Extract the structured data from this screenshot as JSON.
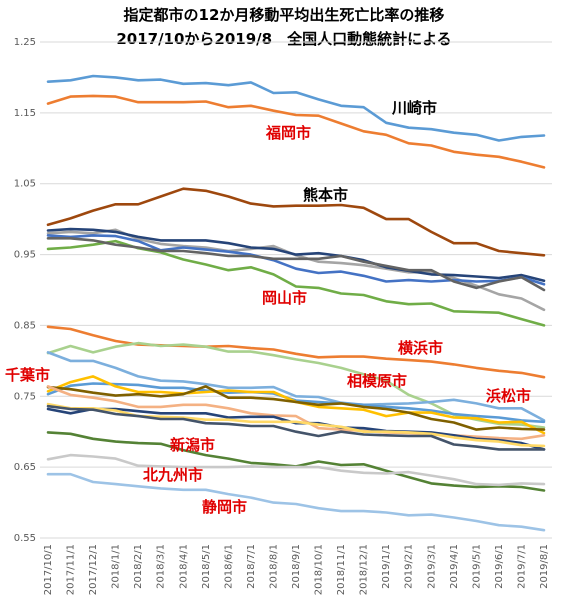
{
  "chart_data": {
    "type": "line",
    "title": "指定都市の12か月移動平均出生死亡比率の推移",
    "subtitle": "2017/10から2019/8　全国人口動態統計による",
    "xlabel": "",
    "ylabel": "",
    "ylim": [
      0.55,
      1.25
    ],
    "y_ticks": [
      "0.55",
      "0.65",
      "0.75",
      "0.85",
      "0.95",
      "1.05",
      "1.15",
      "1.25"
    ],
    "grid": true,
    "legend": "none",
    "categories": [
      "2017/10/1",
      "2017/11/1",
      "2017/12/1",
      "2018/1/1",
      "2018/2/1",
      "2018/3/1",
      "2018/4/1",
      "2018/5/1",
      "2018/6/1",
      "2018/7/1",
      "2018/8/1",
      "2018/9/1",
      "2018/10/1",
      "2018/11/1",
      "2018/12/1",
      "2019/1/1",
      "2019/2/1",
      "2019/3/1",
      "2019/4/1",
      "2019/5/1",
      "2019/6/1",
      "2019/7/1",
      "2019/8/1"
    ],
    "series": [
      {
        "name": "川崎市",
        "color": "#5b9bd5",
        "values": [
          1.194,
          1.196,
          1.202,
          1.2,
          1.196,
          1.197,
          1.191,
          1.192,
          1.189,
          1.193,
          1.178,
          1.179,
          1.169,
          1.16,
          1.158,
          1.136,
          1.129,
          1.127,
          1.122,
          1.119,
          1.111,
          1.116,
          1.118
        ]
      },
      {
        "name": "福岡市",
        "color": "#ed7d31",
        "values": [
          1.163,
          1.173,
          1.174,
          1.173,
          1.165,
          1.165,
          1.165,
          1.166,
          1.158,
          1.16,
          1.153,
          1.147,
          1.146,
          1.135,
          1.124,
          1.119,
          1.107,
          1.104,
          1.095,
          1.091,
          1.088,
          1.081,
          1.073
        ]
      },
      {
        "name": "熊本市",
        "color": "#9e480e",
        "values": [
          0.992,
          1.001,
          1.012,
          1.021,
          1.021,
          1.032,
          1.043,
          1.04,
          1.032,
          1.022,
          1.018,
          1.019,
          1.019,
          1.02,
          1.016,
          1.0,
          1.0,
          0.982,
          0.966,
          0.966,
          0.955,
          0.952,
          0.949
        ]
      },
      {
        "name": "岡山市",
        "color": "#70ad47",
        "values": [
          0.958,
          0.96,
          0.964,
          0.969,
          0.959,
          0.953,
          0.943,
          0.936,
          0.928,
          0.932,
          0.922,
          0.905,
          0.903,
          0.895,
          0.893,
          0.884,
          0.88,
          0.881,
          0.87,
          0.869,
          0.868,
          0.859,
          0.85
        ]
      },
      {
        "name": "",
        "color": "#a5a5a5",
        "values": [
          0.98,
          0.982,
          0.98,
          0.985,
          0.972,
          0.965,
          0.962,
          0.96,
          0.955,
          0.958,
          0.962,
          0.949,
          0.94,
          0.938,
          0.935,
          0.93,
          0.925,
          0.925,
          0.917,
          0.906,
          0.894,
          0.888,
          0.872
        ]
      },
      {
        "name": "",
        "color": "#264478",
        "values": [
          0.984,
          0.986,
          0.985,
          0.982,
          0.975,
          0.97,
          0.97,
          0.97,
          0.966,
          0.96,
          0.958,
          0.95,
          0.952,
          0.948,
          0.942,
          0.932,
          0.927,
          0.922,
          0.921,
          0.919,
          0.917,
          0.921,
          0.913
        ]
      },
      {
        "name": "",
        "color": "#4472c4",
        "values": [
          0.977,
          0.975,
          0.977,
          0.976,
          0.969,
          0.956,
          0.96,
          0.957,
          0.954,
          0.95,
          0.942,
          0.93,
          0.924,
          0.926,
          0.92,
          0.912,
          0.914,
          0.912,
          0.914,
          0.912,
          0.913,
          0.918,
          0.908
        ]
      },
      {
        "name": "",
        "color": "#636363",
        "values": [
          0.973,
          0.973,
          0.97,
          0.964,
          0.96,
          0.955,
          0.955,
          0.952,
          0.948,
          0.948,
          0.944,
          0.944,
          0.944,
          0.948,
          0.94,
          0.934,
          0.928,
          0.928,
          0.912,
          0.903,
          0.912,
          0.918,
          0.9
        ]
      },
      {
        "name": "横浜市",
        "color": "#ed7d31",
        "values": [
          0.848,
          0.845,
          0.836,
          0.828,
          0.823,
          0.822,
          0.821,
          0.82,
          0.821,
          0.818,
          0.816,
          0.81,
          0.805,
          0.806,
          0.806,
          0.803,
          0.801,
          0.799,
          0.795,
          0.79,
          0.786,
          0.783,
          0.777
        ]
      },
      {
        "name": "相模原市",
        "color": "#a9d18e",
        "values": [
          0.811,
          0.821,
          0.812,
          0.82,
          0.825,
          0.821,
          0.823,
          0.82,
          0.813,
          0.813,
          0.808,
          0.802,
          0.797,
          0.79,
          0.781,
          0.772,
          0.752,
          0.74,
          0.724,
          0.717,
          0.711,
          0.71,
          0.706
        ]
      },
      {
        "name": "浜松市",
        "color": "#7cafdd",
        "values": [
          0.812,
          0.8,
          0.8,
          0.79,
          0.778,
          0.772,
          0.771,
          0.767,
          0.762,
          0.762,
          0.763,
          0.75,
          0.749,
          0.741,
          0.738,
          0.739,
          0.74,
          0.742,
          0.745,
          0.74,
          0.733,
          0.733,
          0.716
        ]
      },
      {
        "name": "",
        "color": "#5b9bd5",
        "values": [
          0.753,
          0.765,
          0.768,
          0.767,
          0.766,
          0.762,
          0.762,
          0.758,
          0.755,
          0.756,
          0.754,
          0.744,
          0.742,
          0.74,
          0.738,
          0.735,
          0.733,
          0.73,
          0.725,
          0.722,
          0.72,
          0.716,
          0.714
        ]
      },
      {
        "name": "千葉市",
        "color": "#ffc000",
        "values": [
          0.757,
          0.77,
          0.778,
          0.764,
          0.756,
          0.756,
          0.754,
          0.756,
          0.758,
          0.756,
          0.756,
          0.742,
          0.735,
          0.733,
          0.731,
          0.722,
          0.727,
          0.727,
          0.72,
          0.719,
          0.713,
          0.714,
          0.698
        ]
      },
      {
        "name": "",
        "color": "#7f6000",
        "values": [
          0.763,
          0.76,
          0.755,
          0.751,
          0.753,
          0.75,
          0.753,
          0.764,
          0.748,
          0.748,
          0.746,
          0.742,
          0.738,
          0.74,
          0.735,
          0.732,
          0.727,
          0.718,
          0.713,
          0.703,
          0.706,
          0.704,
          0.703
        ]
      },
      {
        "name": "",
        "color": "#f4b183",
        "values": [
          0.764,
          0.752,
          0.748,
          0.743,
          0.735,
          0.735,
          0.738,
          0.738,
          0.733,
          0.726,
          0.723,
          0.722,
          0.705,
          0.703,
          0.701,
          0.699,
          0.698,
          0.696,
          0.695,
          0.693,
          0.691,
          0.69,
          0.695
        ]
      },
      {
        "name": "",
        "color": "#264478",
        "values": [
          0.732,
          0.726,
          0.732,
          0.732,
          0.729,
          0.726,
          0.726,
          0.726,
          0.72,
          0.721,
          0.721,
          0.712,
          0.712,
          0.706,
          0.705,
          0.701,
          0.7,
          0.699,
          0.695,
          0.69,
          0.688,
          0.684,
          0.675
        ]
      },
      {
        "name": "",
        "color": "#ffd966",
        "values": [
          0.739,
          0.733,
          0.733,
          0.73,
          0.722,
          0.721,
          0.72,
          0.717,
          0.717,
          0.714,
          0.714,
          0.714,
          0.71,
          0.707,
          0.7,
          0.7,
          0.699,
          0.697,
          0.692,
          0.688,
          0.686,
          0.681,
          0.68
        ]
      },
      {
        "name": "",
        "color": "#44546a",
        "values": [
          0.736,
          0.732,
          0.731,
          0.725,
          0.722,
          0.718,
          0.718,
          0.712,
          0.711,
          0.708,
          0.708,
          0.7,
          0.694,
          0.7,
          0.696,
          0.695,
          0.694,
          0.694,
          0.682,
          0.679,
          0.675,
          0.675,
          0.675
        ]
      },
      {
        "name": "新潟市",
        "color": "#548235",
        "values": [
          0.699,
          0.697,
          0.69,
          0.686,
          0.684,
          0.683,
          0.674,
          0.667,
          0.662,
          0.656,
          0.654,
          0.651,
          0.658,
          0.653,
          0.654,
          0.645,
          0.636,
          0.627,
          0.624,
          0.622,
          0.623,
          0.622,
          0.617
        ]
      },
      {
        "name": "北九州市",
        "color": "#c9c9c9",
        "values": [
          0.661,
          0.667,
          0.665,
          0.662,
          0.652,
          0.651,
          0.65,
          0.65,
          0.65,
          0.651,
          0.65,
          0.65,
          0.65,
          0.645,
          0.642,
          0.641,
          0.643,
          0.638,
          0.633,
          0.626,
          0.625,
          0.627,
          0.626
        ]
      },
      {
        "name": "静岡市",
        "color": "#9dc3e6",
        "values": [
          0.64,
          0.64,
          0.629,
          0.626,
          0.623,
          0.62,
          0.618,
          0.618,
          0.612,
          0.607,
          0.6,
          0.598,
          0.592,
          0.588,
          0.588,
          0.586,
          0.582,
          0.583,
          0.579,
          0.574,
          0.568,
          0.566,
          0.561
        ]
      }
    ],
    "annotations": [
      {
        "text": "川崎市",
        "color": "#000000"
      },
      {
        "text": "福岡市",
        "color": "#e00000"
      },
      {
        "text": "熊本市",
        "color": "#000000"
      },
      {
        "text": "岡山市",
        "color": "#e00000"
      },
      {
        "text": "横浜市",
        "color": "#e00000"
      },
      {
        "text": "千葉市",
        "color": "#e00000"
      },
      {
        "text": "相模原市",
        "color": "#e00000"
      },
      {
        "text": "浜松市",
        "color": "#e00000"
      },
      {
        "text": "新潟市",
        "color": "#e00000"
      },
      {
        "text": "北九州市",
        "color": "#e00000"
      },
      {
        "text": "静岡市",
        "color": "#e00000"
      }
    ]
  }
}
